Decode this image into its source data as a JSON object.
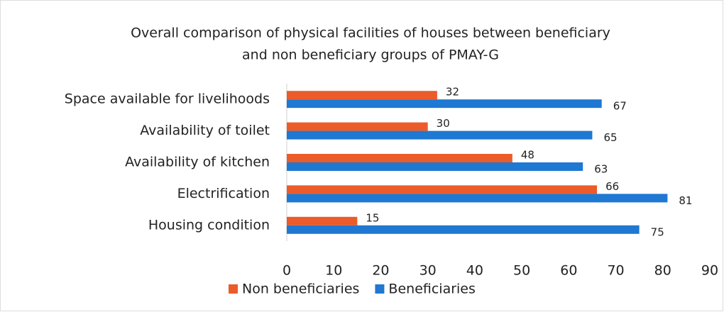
{
  "chart_data": {
    "type": "barh",
    "title": "Overall comparison of physical facilities of houses between beneficiary",
    "subtitle": "and non beneficiary groups of PMAY-G",
    "categories": [
      "Space available for livelihoods",
      "Availability of toilet",
      "Availability of kitchen",
      "Electrification",
      "Housing condition"
    ],
    "series": [
      {
        "name": "Non beneficiaries",
        "color": "#ec5b2a",
        "values": [
          32,
          30,
          48,
          66,
          15
        ]
      },
      {
        "name": "Beneficiaries",
        "color": "#1f78d1",
        "values": [
          67,
          65,
          63,
          81,
          75
        ]
      }
    ],
    "xlim": [
      0,
      90
    ],
    "xticks": [
      0,
      10,
      20,
      30,
      40,
      50,
      60,
      70,
      80,
      90
    ],
    "legend": "bottom",
    "grid": false
  }
}
